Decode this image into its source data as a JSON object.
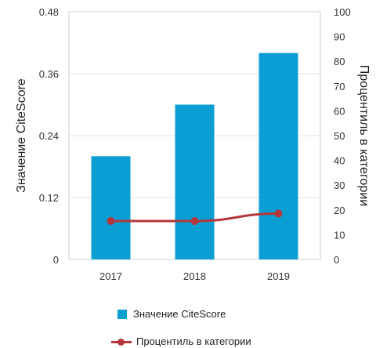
{
  "chart_data": {
    "type": "bar",
    "categories": [
      "2017",
      "2018",
      "2019"
    ],
    "series": [
      {
        "name": "Значение CiteScore",
        "type": "bar",
        "axis": "left",
        "values": [
          0.2,
          0.3,
          0.4
        ],
        "color": "#0a9ed2"
      },
      {
        "name": "Процентиль в категории",
        "type": "line",
        "axis": "right",
        "values": [
          15.5,
          15.5,
          18.5
        ],
        "color": "#b5373c"
      }
    ],
    "ylabel": "Значение CiteScore",
    "y2label": "Процентиль в категории",
    "ylim": [
      0,
      0.48
    ],
    "y2lim": [
      0,
      100
    ],
    "yticks": [
      "0",
      "0.12",
      "0.24",
      "0.36",
      "0.48"
    ],
    "y2ticks": [
      "0",
      "10",
      "20",
      "30",
      "40",
      "50",
      "60",
      "70",
      "80",
      "90",
      "100"
    ],
    "grid": true,
    "legend_position": "bottom"
  }
}
